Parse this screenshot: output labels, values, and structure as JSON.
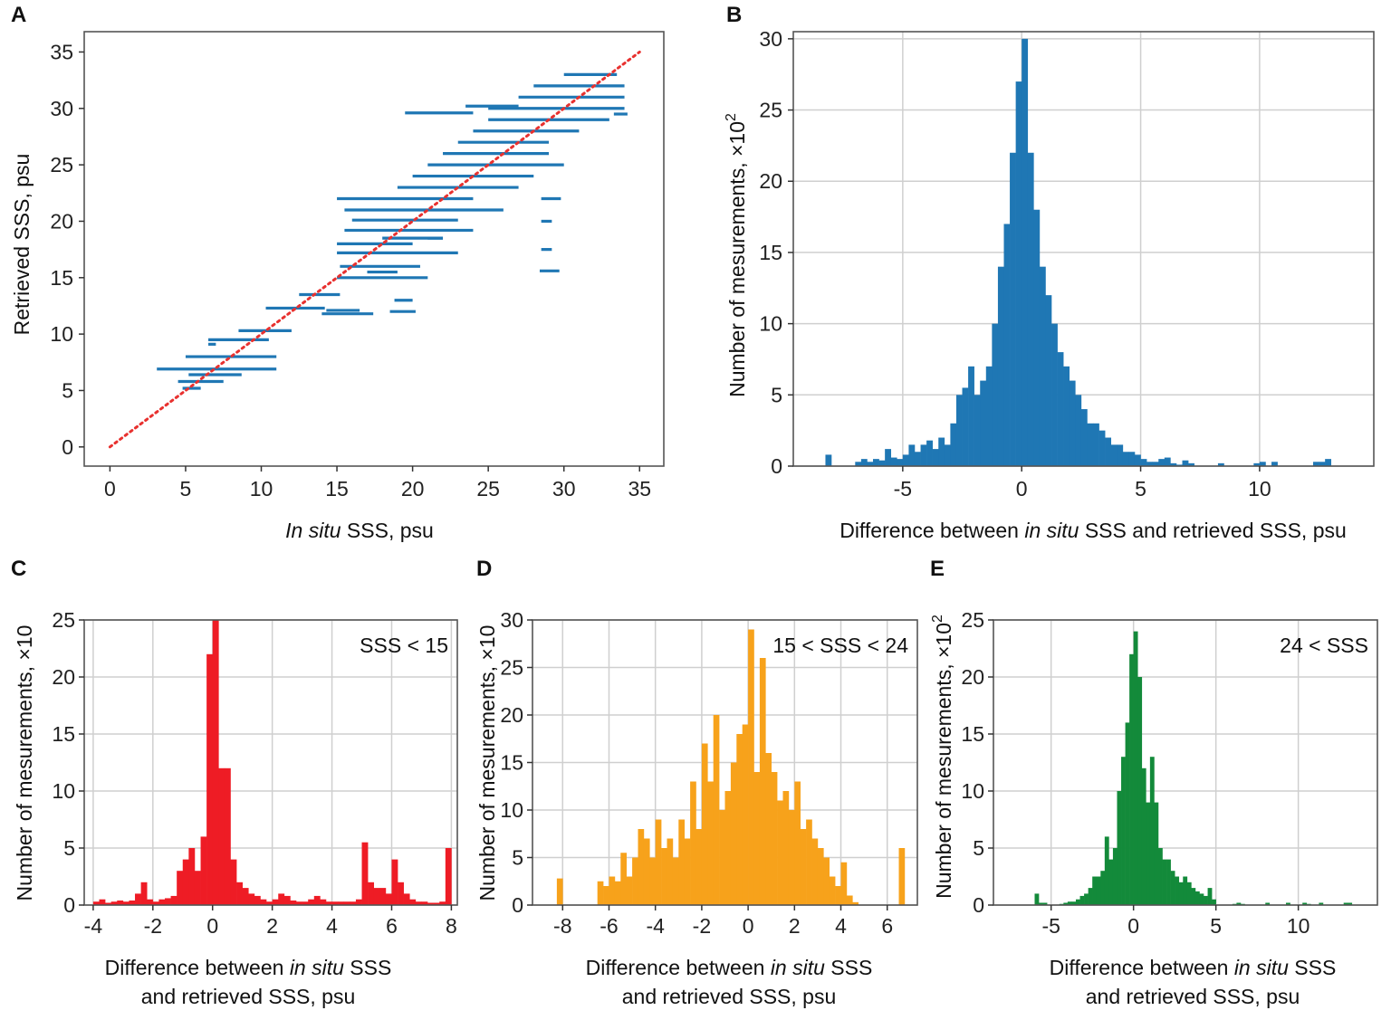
{
  "chart_data": [
    {
      "panel": "A",
      "type": "scatter",
      "xlabel": {
        "em": "In situ",
        "post": " SSS, psu"
      },
      "ylabel": "Retrieved SSS, psu",
      "xlim": [
        -1.7,
        36.6
      ],
      "ylim": [
        -1.7,
        36.8
      ],
      "xticks": [
        0,
        5,
        10,
        15,
        20,
        25,
        30,
        35
      ],
      "yticks": [
        0,
        5,
        10,
        15,
        20,
        25,
        30,
        35
      ],
      "grid": false,
      "color": "#1f77b4",
      "reference_line": {
        "from": [
          0,
          0
        ],
        "to": [
          35,
          35
        ],
        "color": "#e8312f",
        "style": "dotted"
      },
      "segments": [
        [
          3.1,
          11,
          6.9
        ],
        [
          5,
          11,
          8.0
        ],
        [
          4.5,
          7.5,
          5.8
        ],
        [
          5.2,
          8.7,
          6.4
        ],
        [
          4.8,
          6,
          5.2
        ],
        [
          6.5,
          10.5,
          9.5
        ],
        [
          6.5,
          7,
          9.1
        ],
        [
          8.5,
          12,
          10.3
        ],
        [
          10.3,
          14.2,
          12.3
        ],
        [
          12.5,
          15.2,
          13.5
        ],
        [
          14,
          17.4,
          11.8
        ],
        [
          14.3,
          16.5,
          12.1
        ],
        [
          18.5,
          20.2,
          12.0
        ],
        [
          18.8,
          20,
          13.0
        ],
        [
          15,
          21,
          15.0
        ],
        [
          15.2,
          20.5,
          16.0
        ],
        [
          15,
          23,
          17.2
        ],
        [
          15,
          20,
          18.0
        ],
        [
          15.5,
          24,
          19.2
        ],
        [
          16,
          23,
          20.1
        ],
        [
          15.5,
          26,
          21.0
        ],
        [
          15,
          24,
          22.0
        ],
        [
          19,
          27,
          23.0
        ],
        [
          20,
          28,
          24.0
        ],
        [
          21,
          30,
          25.0
        ],
        [
          22,
          29,
          26.0
        ],
        [
          23,
          29,
          27.0
        ],
        [
          24,
          31,
          28.0
        ],
        [
          25,
          33,
          29.0
        ],
        [
          25,
          34,
          30.0
        ],
        [
          27,
          34,
          31.0
        ],
        [
          28,
          34,
          32.0
        ],
        [
          30,
          33.5,
          33.0
        ],
        [
          33.3,
          34.2,
          29.5
        ],
        [
          28.4,
          29.7,
          15.6
        ],
        [
          28.5,
          29.2,
          17.5
        ],
        [
          28.5,
          29.2,
          20.0
        ],
        [
          28.5,
          29.8,
          22.0
        ],
        [
          19.5,
          24,
          29.6
        ],
        [
          23.5,
          27,
          30.2
        ],
        [
          18,
          22,
          18.5
        ],
        [
          17,
          19,
          15.5
        ],
        [
          21,
          22,
          18.5
        ]
      ]
    },
    {
      "panel": "B",
      "type": "bar",
      "xlabel": {
        "pre": "Difference between ",
        "em": "in situ",
        "post": " SSS and retrieved SSS, psu"
      },
      "ylabel": "Number of mesurements, ×10",
      "ylabel_exp": "2",
      "xlim": [
        -9.6,
        14.8
      ],
      "ylim": [
        0,
        30.5
      ],
      "xticks": [
        -5,
        0,
        5,
        10
      ],
      "yticks": [
        0,
        5,
        10,
        15,
        20,
        25,
        30
      ],
      "grid": true,
      "color": "#1f77b4",
      "bin_start": -8.5,
      "bin_width": 0.25,
      "values": [
        0,
        0.8,
        0,
        0,
        0,
        0,
        0.3,
        0.5,
        0.3,
        0.5,
        0.4,
        1.2,
        0.6,
        0.5,
        0.8,
        1.5,
        1,
        1.5,
        1.8,
        1.2,
        2,
        1.5,
        3,
        5,
        5.5,
        7,
        5,
        6,
        7,
        10,
        14,
        17,
        22,
        27,
        30,
        22,
        18,
        14,
        12,
        10,
        8,
        7,
        6,
        5,
        4,
        3,
        3,
        2.5,
        2,
        1.5,
        1.5,
        1,
        1,
        0.8,
        0.5,
        0.3,
        0.3,
        0.5,
        0.6,
        0.2,
        0.1,
        0.4,
        0.2,
        0,
        0,
        0,
        0,
        0.2,
        0,
        0,
        0,
        0,
        0,
        0.2,
        0.3,
        0,
        0.3,
        0,
        0,
        0,
        0,
        0,
        0,
        0.3,
        0.3,
        0.5,
        0,
        0
      ]
    },
    {
      "panel": "C",
      "type": "bar",
      "annotation": "SSS < 15",
      "xlabel": {
        "pre": "Difference between ",
        "em": "in situ",
        "post": " SSS",
        "line2": "and retrieved SSS, psu"
      },
      "ylabel": "Number of mesurements, ×10",
      "xlim": [
        -4.3,
        8.2
      ],
      "ylim": [
        0,
        25
      ],
      "xticks": [
        -4,
        -2,
        0,
        2,
        4,
        6,
        8
      ],
      "yticks": [
        0,
        5,
        10,
        15,
        20,
        25
      ],
      "grid": true,
      "color": "#ee1c25",
      "bin_start": -4,
      "bin_width": 0.2,
      "values": [
        0.3,
        0.5,
        0.2,
        0.3,
        0.4,
        0.3,
        0.4,
        1,
        2,
        0.5,
        0.3,
        0.5,
        0.6,
        0.8,
        3,
        4,
        5,
        3,
        6,
        22,
        25,
        12,
        12,
        4,
        2,
        1.5,
        1,
        0.8,
        0.5,
        0.3,
        0.5,
        1,
        0.8,
        0.4,
        0.3,
        0.3,
        0.5,
        0.8,
        0.5,
        0.3,
        0.3,
        0.3,
        0.3,
        0.3,
        0.5,
        5.5,
        2,
        1.5,
        1.5,
        1,
        4,
        2,
        1,
        0.5,
        0.3,
        0.3,
        0.2,
        0.2,
        0.3,
        5
      ]
    },
    {
      "panel": "D",
      "type": "bar",
      "annotation": "15 < SSS < 24",
      "xlabel": {
        "pre": "Difference between ",
        "em": "in situ",
        "post": " SSS",
        "line2": "and retrieved SSS, psu"
      },
      "ylabel": "Number of mesurements, ×10",
      "xlim": [
        -9.3,
        7.3
      ],
      "ylim": [
        0,
        30
      ],
      "xticks": [
        -8,
        -6,
        -4,
        -2,
        0,
        2,
        4,
        6
      ],
      "yticks": [
        0,
        5,
        10,
        15,
        20,
        25,
        30
      ],
      "grid": true,
      "color": "#f7a21b",
      "bin_start": -8.5,
      "bin_width": 0.25,
      "values": [
        0,
        2.8,
        0,
        0,
        0,
        0,
        0,
        0,
        2.5,
        2,
        3,
        2.5,
        5.5,
        3,
        5,
        8,
        7,
        5,
        9,
        6,
        7,
        5,
        9,
        7,
        13,
        8,
        17,
        13,
        20,
        10,
        12,
        15,
        18,
        19,
        29,
        14,
        26,
        16,
        14,
        11,
        12,
        10,
        13,
        8,
        9,
        7,
        6,
        5,
        3,
        2,
        4.5,
        1,
        0.3,
        0,
        0,
        0,
        0,
        0,
        0,
        0,
        6
      ]
    },
    {
      "panel": "E",
      "type": "bar",
      "annotation": "24 < SSS",
      "xlabel": {
        "pre": "Difference between ",
        "em": "in situ",
        "post": " SSS",
        "line2": "and retrieved SSS, psu"
      },
      "ylabel": "Number of mesurements, ×10",
      "ylabel_exp": "2",
      "xlim": [
        -8.5,
        14.8
      ],
      "ylim": [
        0,
        25
      ],
      "xticks": [
        -5,
        0,
        5,
        10
      ],
      "yticks": [
        0,
        5,
        10,
        15,
        20,
        25
      ],
      "grid": true,
      "color": "#138a3a",
      "bin_start": -6,
      "bin_width": 0.25,
      "values": [
        1,
        0.2,
        0.2,
        0,
        0,
        0,
        0.1,
        0.2,
        0.3,
        0.3,
        0.5,
        0.8,
        1,
        1.5,
        2.5,
        2.5,
        3,
        6,
        4,
        5,
        10,
        13,
        16,
        22,
        24,
        20,
        12,
        9,
        13,
        9,
        5,
        4,
        4,
        3,
        2.5,
        2,
        2.5,
        2,
        1.5,
        1.2,
        1,
        0.8,
        1.5,
        0.5,
        0,
        0,
        0,
        0,
        0.1,
        0.2,
        0.1,
        0,
        0,
        0,
        0,
        0,
        0.2,
        0,
        0,
        0,
        0,
        0.2,
        0,
        0,
        0,
        0.2,
        0.1,
        0,
        0,
        0.2,
        0,
        0,
        0,
        0,
        0,
        0.2,
        0.2,
        0
      ]
    }
  ]
}
